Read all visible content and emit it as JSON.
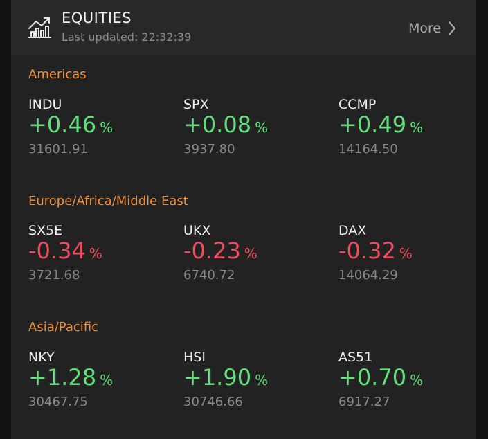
{
  "header": {
    "title": "EQUITIES",
    "updated": "Last updated: 22:32:39",
    "more_label": "More",
    "icon": "chart-trend-icon"
  },
  "colors": {
    "section": "#f0913a",
    "up": "#5fe07a",
    "down": "#ef4a5e"
  },
  "sections": [
    {
      "title": "Americas",
      "items": [
        {
          "symbol": "INDU",
          "change": "+0.46",
          "pct": "%",
          "value": "31601.91",
          "dir": "up"
        },
        {
          "symbol": "SPX",
          "change": "+0.08",
          "pct": "%",
          "value": "3937.80",
          "dir": "up"
        },
        {
          "symbol": "CCMP",
          "change": "+0.49",
          "pct": "%",
          "value": "14164.50",
          "dir": "up"
        }
      ]
    },
    {
      "title": "Europe/Africa/Middle East",
      "items": [
        {
          "symbol": "SX5E",
          "change": "-0.34",
          "pct": "%",
          "value": "3721.68",
          "dir": "down"
        },
        {
          "symbol": "UKX",
          "change": "-0.23",
          "pct": "%",
          "value": "6740.72",
          "dir": "down"
        },
        {
          "symbol": "DAX",
          "change": "-0.32",
          "pct": "%",
          "value": "14064.29",
          "dir": "down"
        }
      ]
    },
    {
      "title": "Asia/Pacific",
      "items": [
        {
          "symbol": "NKY",
          "change": "+1.28",
          "pct": "%",
          "value": "30467.75",
          "dir": "up"
        },
        {
          "symbol": "HSI",
          "change": "+1.90",
          "pct": "%",
          "value": "30746.66",
          "dir": "up"
        },
        {
          "symbol": "AS51",
          "change": "+0.70",
          "pct": "%",
          "value": "6917.27",
          "dir": "up"
        }
      ]
    }
  ]
}
